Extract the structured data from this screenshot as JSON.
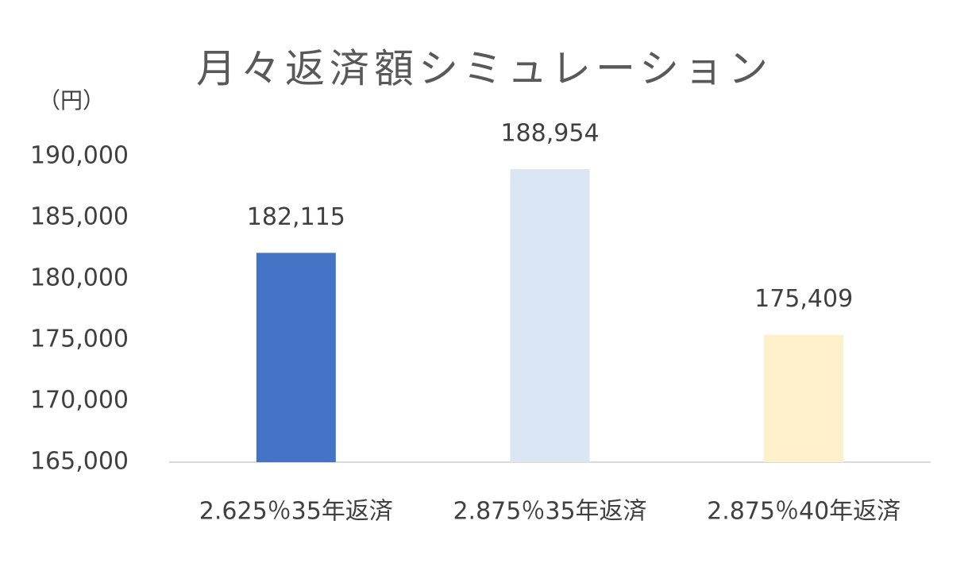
{
  "chart_data": {
    "type": "bar",
    "title": "月々返済額シミュレーション",
    "y_label": "（円）",
    "categories": [
      "2.625％35年返済",
      "2.875％35年返済",
      "2.875％40年返済"
    ],
    "values": [
      182115,
      188954,
      175409
    ],
    "value_labels": [
      "182,115",
      "188,954",
      "175,409"
    ],
    "colors": [
      "#4472c4",
      "#dae6f4",
      "#fff0cc"
    ],
    "ylim": [
      165000,
      190000
    ],
    "yticks": [
      {
        "value": 165000,
        "label": "165,000"
      },
      {
        "value": 170000,
        "label": "170,000"
      },
      {
        "value": 175000,
        "label": "175,000"
      },
      {
        "value": 180000,
        "label": "180,000"
      },
      {
        "value": 185000,
        "label": "185,000"
      },
      {
        "value": 190000,
        "label": "190,000"
      }
    ],
    "grid": false
  }
}
